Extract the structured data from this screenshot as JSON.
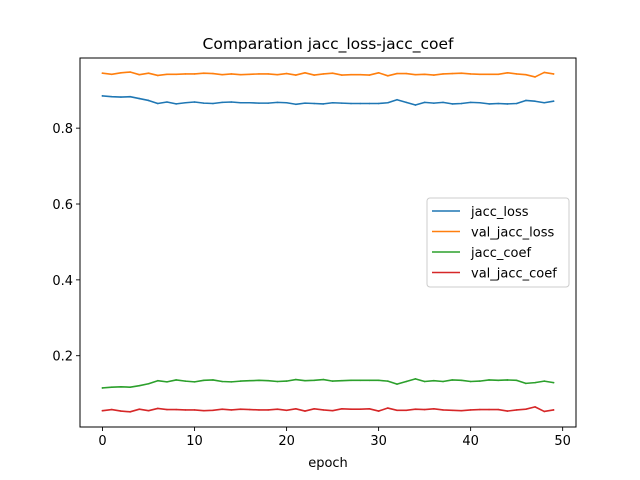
{
  "chart_data": {
    "type": "line",
    "title": "Comparation jacc_loss-jacc_coef",
    "xlabel": "epoch",
    "ylabel": "",
    "xlim": [
      -2.45,
      51.45
    ],
    "ylim": [
      0.012,
      0.985
    ],
    "xticks": [
      0,
      10,
      20,
      30,
      40,
      50
    ],
    "yticks": [
      0.2,
      0.4,
      0.6,
      0.8
    ],
    "ytick_labels": [
      "0.2",
      "0.4",
      "0.6",
      "0.8"
    ],
    "legend_position": "center-right",
    "grid": false,
    "x": [
      0,
      1,
      2,
      3,
      4,
      5,
      6,
      7,
      8,
      9,
      10,
      11,
      12,
      13,
      14,
      15,
      16,
      17,
      18,
      19,
      20,
      21,
      22,
      23,
      24,
      25,
      26,
      27,
      28,
      29,
      30,
      31,
      32,
      33,
      34,
      35,
      36,
      37,
      38,
      39,
      40,
      41,
      42,
      43,
      44,
      45,
      46,
      47,
      48,
      49
    ],
    "series": [
      {
        "name": "jacc_loss",
        "color": "#1f77b4",
        "values": [
          0.885,
          0.883,
          0.882,
          0.883,
          0.878,
          0.873,
          0.865,
          0.869,
          0.864,
          0.867,
          0.869,
          0.866,
          0.865,
          0.868,
          0.869,
          0.867,
          0.867,
          0.866,
          0.866,
          0.868,
          0.867,
          0.863,
          0.866,
          0.865,
          0.864,
          0.867,
          0.866,
          0.865,
          0.865,
          0.865,
          0.865,
          0.867,
          0.875,
          0.868,
          0.861,
          0.868,
          0.866,
          0.868,
          0.864,
          0.865,
          0.868,
          0.867,
          0.864,
          0.865,
          0.864,
          0.865,
          0.873,
          0.871,
          0.867,
          0.871
        ]
      },
      {
        "name": "val_jacc_loss",
        "color": "#ff7f0e",
        "values": [
          0.945,
          0.942,
          0.946,
          0.948,
          0.941,
          0.945,
          0.939,
          0.942,
          0.942,
          0.943,
          0.943,
          0.945,
          0.944,
          0.941,
          0.943,
          0.941,
          0.942,
          0.943,
          0.943,
          0.941,
          0.944,
          0.94,
          0.946,
          0.94,
          0.943,
          0.945,
          0.94,
          0.941,
          0.941,
          0.94,
          0.946,
          0.938,
          0.944,
          0.944,
          0.941,
          0.942,
          0.94,
          0.943,
          0.944,
          0.945,
          0.943,
          0.942,
          0.942,
          0.942,
          0.946,
          0.943,
          0.941,
          0.935,
          0.947,
          0.943
        ]
      },
      {
        "name": "jacc_coef",
        "color": "#2ca02c",
        "values": [
          0.115,
          0.117,
          0.118,
          0.117,
          0.121,
          0.126,
          0.134,
          0.131,
          0.136,
          0.133,
          0.131,
          0.135,
          0.136,
          0.132,
          0.131,
          0.133,
          0.134,
          0.135,
          0.134,
          0.132,
          0.133,
          0.137,
          0.134,
          0.135,
          0.137,
          0.133,
          0.134,
          0.135,
          0.135,
          0.135,
          0.135,
          0.133,
          0.125,
          0.132,
          0.139,
          0.132,
          0.134,
          0.132,
          0.136,
          0.135,
          0.132,
          0.133,
          0.136,
          0.135,
          0.136,
          0.135,
          0.127,
          0.129,
          0.133,
          0.129
        ]
      },
      {
        "name": "val_jacc_coef",
        "color": "#d62728",
        "values": [
          0.055,
          0.058,
          0.054,
          0.052,
          0.059,
          0.055,
          0.061,
          0.058,
          0.058,
          0.057,
          0.057,
          0.055,
          0.056,
          0.059,
          0.057,
          0.059,
          0.058,
          0.057,
          0.057,
          0.059,
          0.056,
          0.06,
          0.054,
          0.06,
          0.057,
          0.055,
          0.06,
          0.059,
          0.059,
          0.06,
          0.054,
          0.062,
          0.056,
          0.056,
          0.059,
          0.058,
          0.06,
          0.057,
          0.056,
          0.055,
          0.057,
          0.058,
          0.058,
          0.058,
          0.054,
          0.057,
          0.059,
          0.065,
          0.053,
          0.057
        ]
      }
    ]
  }
}
